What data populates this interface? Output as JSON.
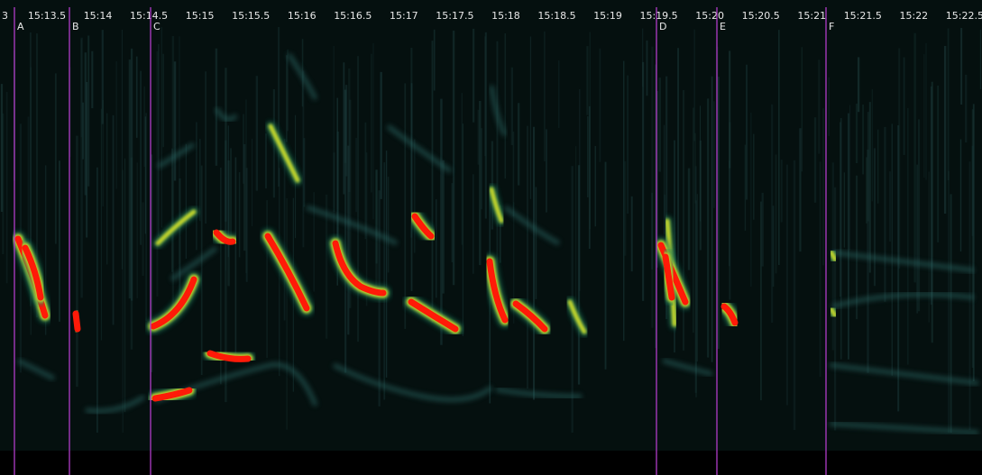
{
  "timeline": {
    "fragment": "3",
    "ticks": [
      "15:13.5",
      "15:14",
      "15:14.5",
      "15:15",
      "15:15.5",
      "15:16",
      "15:16.5",
      "15:17",
      "15:17.5",
      "15:18",
      "15:18.5",
      "15:19",
      "15:19.5",
      "15:20",
      "15:20.5",
      "15:21",
      "15:21.5",
      "15:22",
      "15:22.5"
    ]
  },
  "markers": [
    "A",
    "B",
    "C",
    "D",
    "E",
    "F"
  ]
}
